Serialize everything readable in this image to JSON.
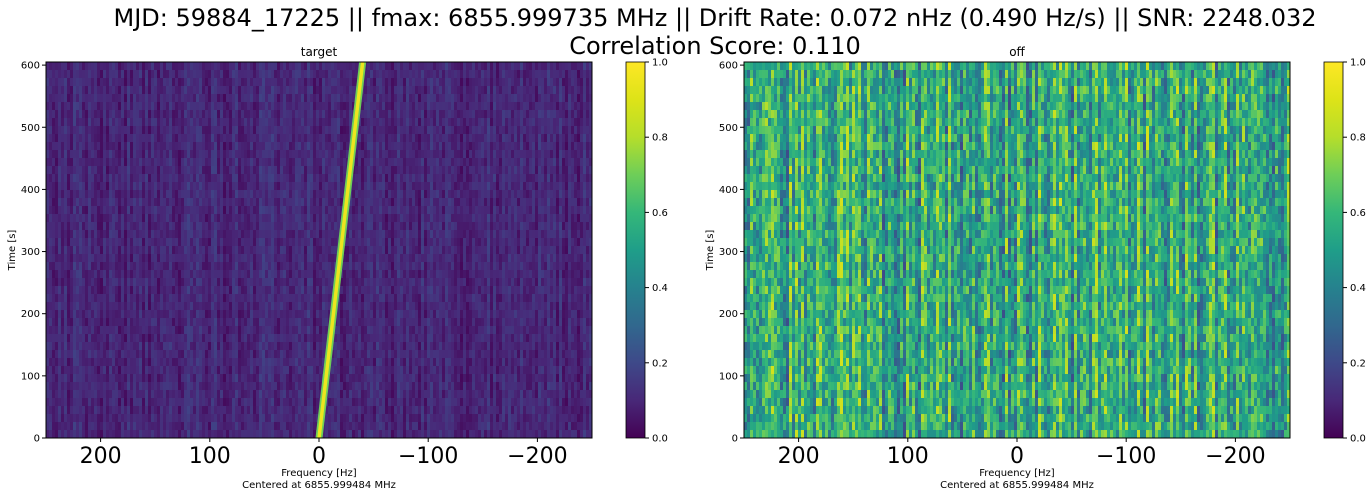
{
  "suptitle": {
    "line1": "MJD: 59884_17225 || fmax: 6855.999735 MHz || Drift Rate: 0.072 nHz (0.490 Hz/s) || SNR: 2248.032",
    "line2": "Correlation Score: 0.110"
  },
  "chart_data": [
    {
      "type": "heatmap",
      "title": "target",
      "xlabel": "Frequency [Hz]",
      "xlabel2": "Centered at 6855.999484 MHz",
      "ylabel": "Time [s]",
      "xlim": [
        250,
        -250
      ],
      "ylim": [
        0,
        605
      ],
      "xticks": [
        200,
        100,
        0,
        -100,
        -200
      ],
      "xtick_labels": [
        "200",
        "100",
        "0",
        "−100",
        "−200"
      ],
      "yticks": [
        0,
        100,
        200,
        300,
        400,
        500,
        600
      ],
      "colormap": "viridis",
      "clim": [
        0,
        1
      ],
      "colorbar_ticks": [
        "0.0",
        "0.2",
        "0.4",
        "0.6",
        "0.8",
        "1.0"
      ],
      "background_level": 0.1,
      "signal": {
        "x_at_t0": 0,
        "x_at_tmax": -40,
        "t_max": 605,
        "level": 0.95
      }
    },
    {
      "type": "heatmap",
      "title": "off",
      "xlabel": "Frequency [Hz]",
      "xlabel2": "Centered at 6855.999484 MHz",
      "ylabel": "Time [s]",
      "xlim": [
        250,
        -250
      ],
      "ylim": [
        0,
        605
      ],
      "xticks": [
        200,
        100,
        0,
        -100,
        -200
      ],
      "xtick_labels": [
        "200",
        "100",
        "0",
        "−100",
        "−200"
      ],
      "yticks": [
        0,
        100,
        200,
        300,
        400,
        500,
        600
      ],
      "colormap": "viridis",
      "clim": [
        0,
        1
      ],
      "colorbar_ticks": [
        "0.0",
        "0.2",
        "0.4",
        "0.6",
        "0.8",
        "1.0"
      ],
      "background_level": 0.55
    }
  ]
}
